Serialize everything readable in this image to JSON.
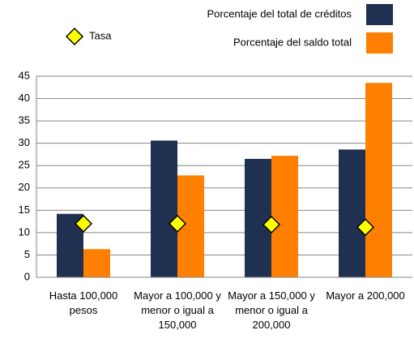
{
  "chart_data": {
    "type": "bar",
    "categories": [
      "Hasta 100,000 pesos",
      "Mayor a 100,000 y menor o igual a 150,000",
      "Mayor a 150,000 y menor o igual a 200,000",
      "Mayor a 200,000"
    ],
    "series": [
      {
        "name": "Porcentaje del total de créditos",
        "color": "#1f3050",
        "values": [
          14.2,
          30.6,
          26.5,
          28.6
        ]
      },
      {
        "name": "Porcentaje del saldo total",
        "color": "#ff8000",
        "values": [
          6.3,
          22.8,
          27.2,
          43.5
        ]
      },
      {
        "name": "Tasa",
        "color": "#ffff00",
        "marker": "diamond",
        "values": [
          12.0,
          12.0,
          11.8,
          11.2
        ]
      }
    ],
    "ylim": [
      0,
      45
    ],
    "yticks": [
      0,
      5,
      10,
      15,
      20,
      25,
      30,
      35,
      40,
      45
    ],
    "grid": true
  }
}
